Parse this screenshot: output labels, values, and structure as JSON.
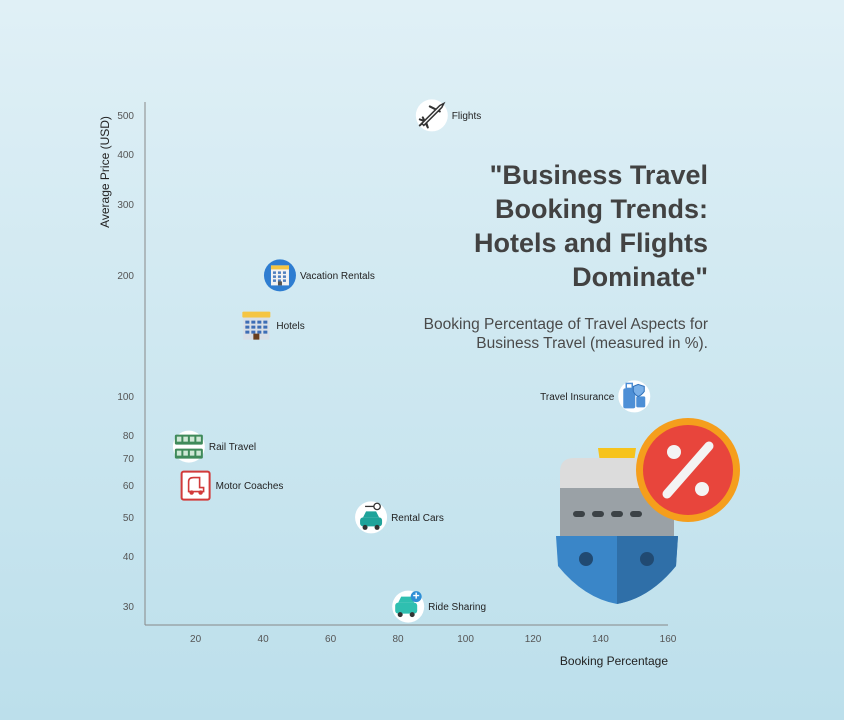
{
  "chart_data": {
    "type": "scatter",
    "title": "\"Business Travel Booking Trends: Hotels and Flights Dominate\"",
    "subtitle": "Booking Percentage of Travel Aspects for Business Travel (measured in %).",
    "xlabel": "Booking Percentage",
    "ylabel": "Average Price (USD)",
    "xlim": [
      5,
      160
    ],
    "ylim": [
      27,
      540
    ],
    "y_scale": "log",
    "grid": false,
    "x_ticks": [
      "20",
      "40",
      "60",
      "80",
      "100",
      "120",
      "140",
      "160"
    ],
    "y_ticks": [
      "30",
      "40",
      "50",
      "60",
      "70",
      "80",
      "100",
      "200",
      "300",
      "400",
      "500"
    ],
    "points": [
      {
        "label": "Flights",
        "x": 90,
        "y": 500,
        "icon": "airplane-icon"
      },
      {
        "label": "Vacation Rentals",
        "x": 45,
        "y": 200,
        "icon": "building-icon"
      },
      {
        "label": "Hotels",
        "x": 38,
        "y": 150,
        "icon": "hotel-icon"
      },
      {
        "label": "Travel Insurance",
        "x": 150,
        "y": 100,
        "icon": "luggage-shield-icon"
      },
      {
        "label": "Rail Travel",
        "x": 18,
        "y": 75,
        "icon": "train-tickets-icon"
      },
      {
        "label": "Motor Coaches",
        "x": 20,
        "y": 60,
        "icon": "coach-sign-icon"
      },
      {
        "label": "Rental Cars",
        "x": 72,
        "y": 50,
        "icon": "car-key-icon"
      },
      {
        "label": "Ride Sharing",
        "x": 83,
        "y": 30,
        "icon": "ride-share-icon"
      }
    ],
    "decoration": "cruise-ship-discount-icon",
    "colors": {
      "axis": "#888888",
      "title": "#424242",
      "ship_hull": "#3a86c8",
      "discount": "#e8453c"
    }
  }
}
